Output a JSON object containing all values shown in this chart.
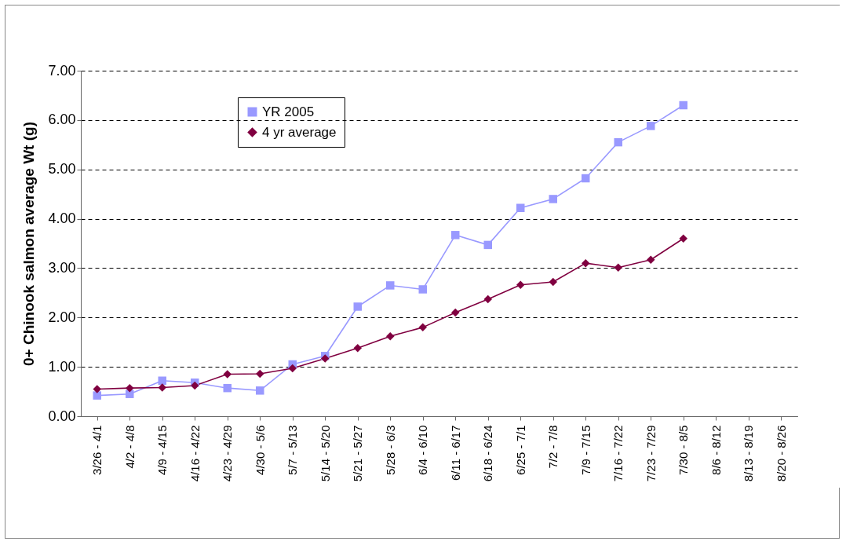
{
  "chart_data": {
    "type": "line",
    "ylabel": "0+ Chinook salmon average Wt (g)",
    "categories": [
      "3/26 - 4/1",
      "4/2 - 4/8",
      "4/9 - 4/15",
      "4/16 - 4/22",
      "4/23 - 4/29",
      "4/30 - 5/6",
      "5/7 - 5/13",
      "5/14 - 5/20",
      "5/21 - 5/27",
      "5/28 - 6/3",
      "6/4 - 6/10",
      "6/11 - 6/17",
      "6/18 - 6/24",
      "6/25 - 7/1",
      "7/2 - 7/8",
      "7/9 - 7/15",
      "7/16 - 7/22",
      "7/23 - 7/29",
      "7/30 - 8/5",
      "8/6 - 8/12",
      "8/13 - 8/19",
      "8/20 - 8/26"
    ],
    "series": [
      {
        "name": "YR 2005",
        "color": "#9999ff",
        "marker": "square",
        "values": [
          0.42,
          0.45,
          0.72,
          0.68,
          0.57,
          0.52,
          1.05,
          1.22,
          2.22,
          2.65,
          2.57,
          3.67,
          3.47,
          4.22,
          4.4,
          4.82,
          5.55,
          5.88,
          6.3,
          null,
          null,
          null
        ]
      },
      {
        "name": "4 yr average",
        "color": "#800040",
        "marker": "diamond",
        "values": [
          0.55,
          0.57,
          0.58,
          0.62,
          0.85,
          0.86,
          0.97,
          1.17,
          1.38,
          1.62,
          1.8,
          2.1,
          2.37,
          2.66,
          2.72,
          3.1,
          3.01,
          3.17,
          3.6,
          null,
          null,
          null
        ]
      }
    ],
    "ylim": [
      0,
      7
    ],
    "yticks": [
      {
        "value": 0,
        "label": "0.00"
      },
      {
        "value": 1,
        "label": "1.00"
      },
      {
        "value": 2,
        "label": "2.00"
      },
      {
        "value": 3,
        "label": "3.00"
      },
      {
        "value": 4,
        "label": "4.00"
      },
      {
        "value": 5,
        "label": "5.00"
      },
      {
        "value": 6,
        "label": "6.00"
      },
      {
        "value": 7,
        "label": "7.00"
      }
    ],
    "grid": "y",
    "legend": "top left",
    "line_style": "solid"
  }
}
